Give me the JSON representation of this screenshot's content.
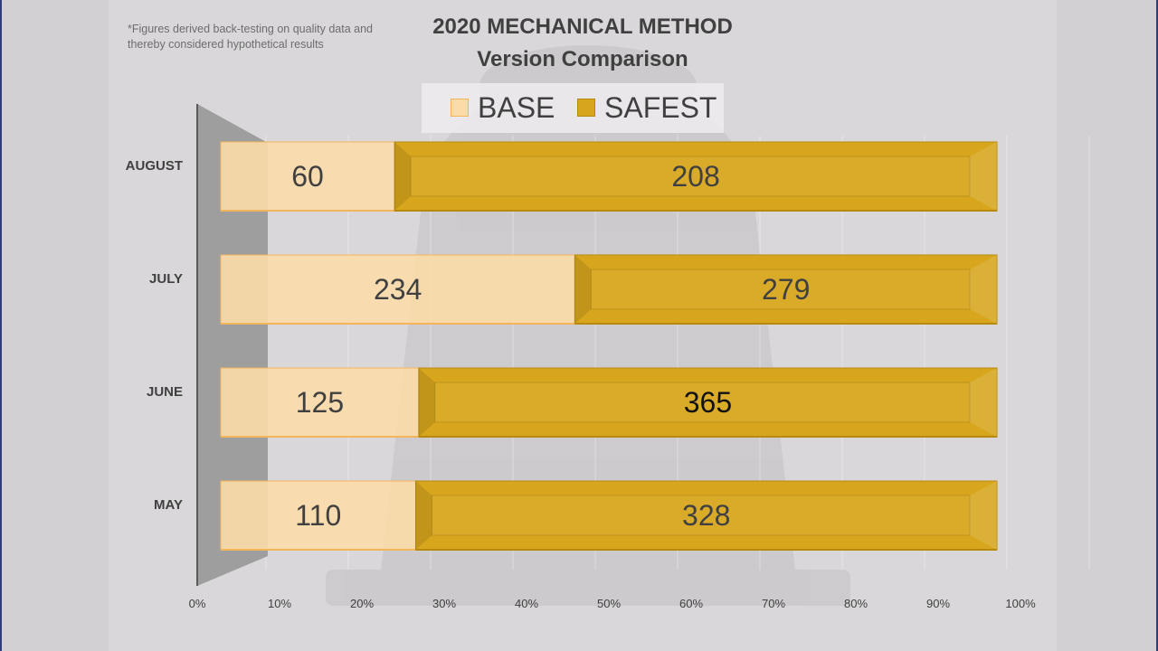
{
  "note": "*Figures derived back-testing on quality data and thereby considered hypothetical results",
  "colors": {
    "base_fill": "#fbdba8",
    "base_border": "#f2b55c",
    "safest_fill": "#d7a61c",
    "safest_border": "#b8890f",
    "text_dark": "#404040",
    "wall": "#9e9e9e"
  },
  "chart_data": {
    "type": "bar",
    "orientation": "horizontal",
    "stacked": "percent",
    "title": "2020 MECHANICAL METHOD",
    "subtitle": "Version Comparison",
    "legend_position": "top",
    "categories": [
      "MAY",
      "JUNE",
      "JULY",
      "AUGUST"
    ],
    "series": [
      {
        "name": "BASE",
        "values": [
          110,
          125,
          234,
          60
        ]
      },
      {
        "name": "SAFEST",
        "values": [
          328,
          365,
          279,
          208
        ]
      }
    ],
    "value_labels": [
      [
        "110",
        "125",
        "234",
        "60"
      ],
      [
        "328",
        "365",
        "279",
        "208"
      ]
    ],
    "xticks": [
      "0%",
      "10%",
      "20%",
      "30%",
      "40%",
      "50%",
      "60%",
      "70%",
      "80%",
      "90%",
      "100%"
    ],
    "xlim": [
      0,
      100
    ],
    "grid": true
  }
}
